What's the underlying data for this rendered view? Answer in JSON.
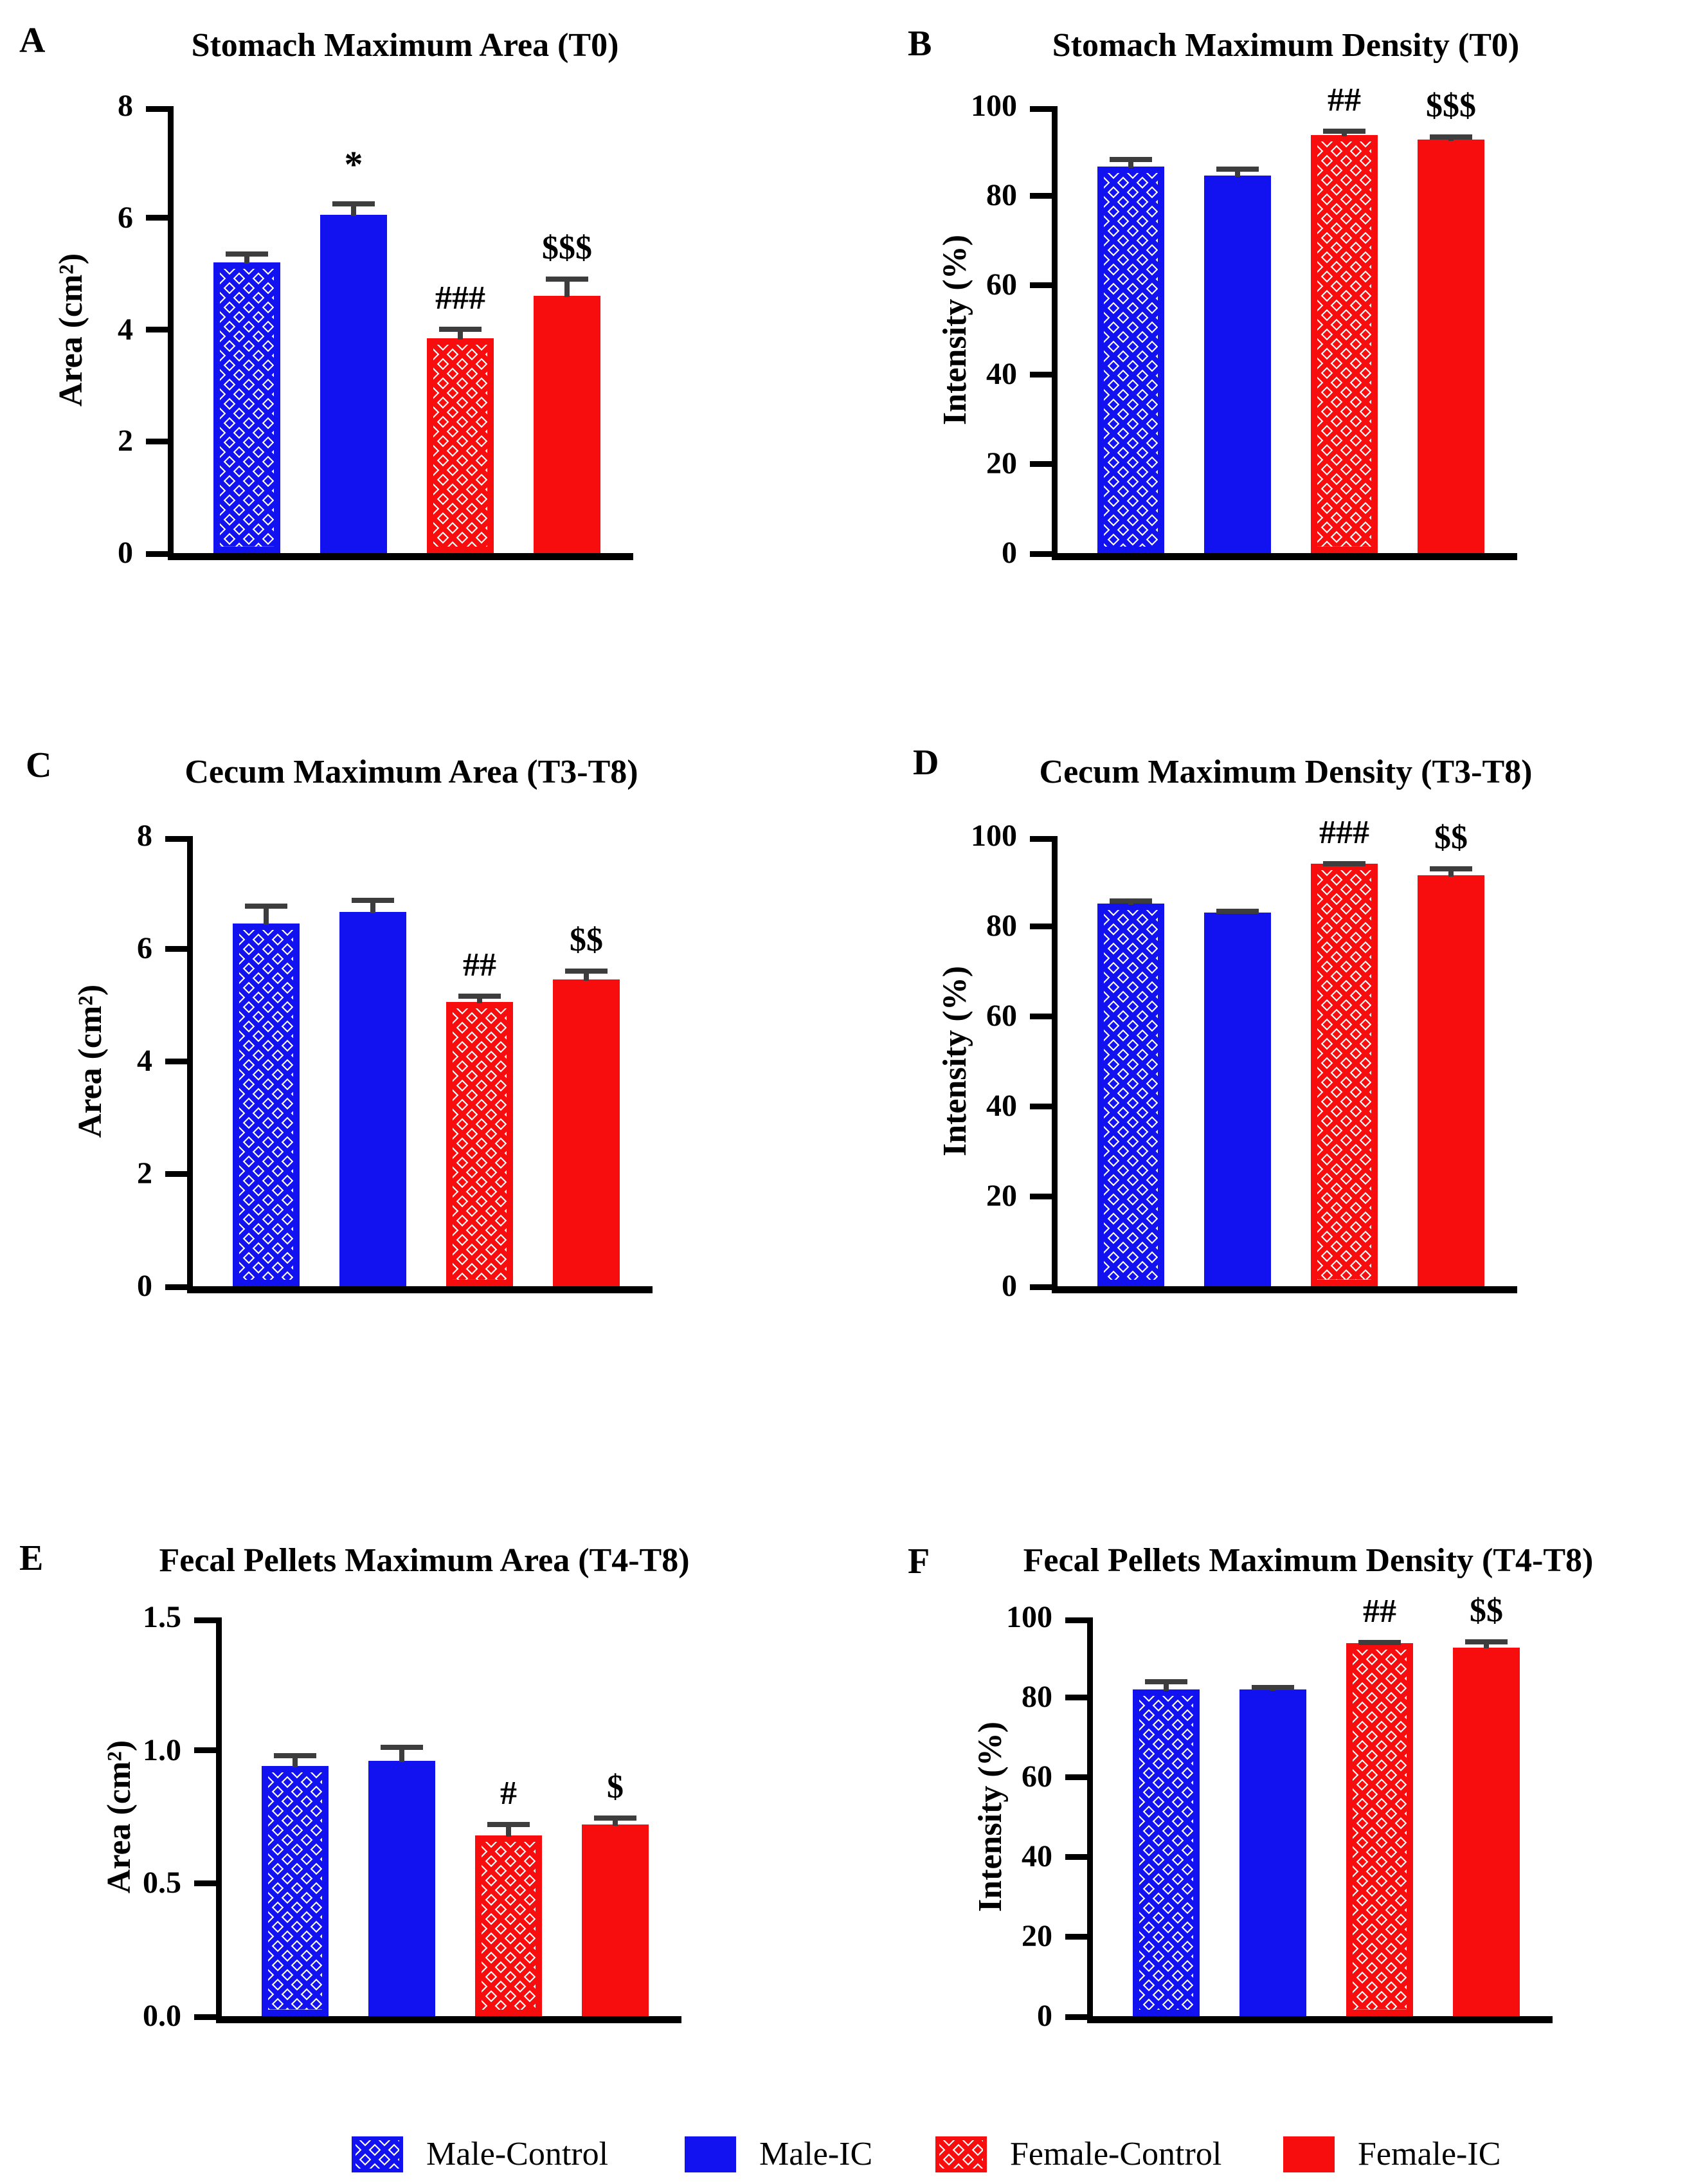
{
  "figure": {
    "description": "Six-panel bar chart figure comparing gastrointestinal scintigraphy measures between male and female, control and IC groups",
    "groups": [
      "Male-Control",
      "Male-IC",
      "Female-Control",
      "Female-IC"
    ]
  },
  "colors": {
    "male_blue": "#1212f0",
    "female_red": "#f70d0d",
    "error_bar": "#3d3d3d",
    "axis": "#000000",
    "background": "#ffffff"
  },
  "legend": {
    "items": [
      {
        "label": "Male-Control",
        "fill": "checker-blue"
      },
      {
        "label": "Male-IC",
        "fill": "solid-blue"
      },
      {
        "label": "Female-Control",
        "fill": "checker-red"
      },
      {
        "label": "Female-IC",
        "fill": "solid-red"
      }
    ]
  },
  "chart_data": [
    {
      "type": "bar",
      "panel_letter": "A",
      "title": "Stomach Maximum Area (T0)",
      "ylabel": "Area (cm²)",
      "ylim": [
        0,
        8
      ],
      "ystep": 2,
      "tick_decimals": 0,
      "grid": false,
      "categories": [
        "Male-Control",
        "Male-IC",
        "Female-Control",
        "Female-IC"
      ],
      "values": [
        5.2,
        6.05,
        3.85,
        4.6
      ],
      "errors": [
        0.2,
        0.25,
        0.2,
        0.35
      ],
      "significance": [
        "",
        "*",
        "###",
        "$$$"
      ],
      "fills": [
        "checker-blue",
        "solid-blue",
        "checker-red",
        "solid-red"
      ]
    },
    {
      "type": "bar",
      "panel_letter": "B",
      "title": "Stomach Maximum Density (T0)",
      "ylabel": "Intensity (%)",
      "ylim": [
        0,
        100
      ],
      "ystep": 20,
      "tick_decimals": 0,
      "grid": false,
      "categories": [
        "Male-Control",
        "Male-IC",
        "Female-Control",
        "Female-IC"
      ],
      "values": [
        86.5,
        84.5,
        93.5,
        92.5
      ],
      "errors": [
        2.2,
        2.0,
        1.5,
        1.2
      ],
      "significance": [
        "",
        "",
        "##",
        "$$$"
      ],
      "fills": [
        "checker-blue",
        "solid-blue",
        "checker-red",
        "solid-red"
      ]
    },
    {
      "type": "bar",
      "panel_letter": "C",
      "title": "Cecum Maximum Area (T3-T8)",
      "ylabel": "Area (cm²)",
      "ylim": [
        0,
        8
      ],
      "ystep": 2,
      "tick_decimals": 0,
      "grid": false,
      "categories": [
        "Male-Control",
        "Male-IC",
        "Female-Control",
        "Female-IC"
      ],
      "values": [
        6.45,
        6.65,
        5.05,
        5.45
      ],
      "errors": [
        0.35,
        0.25,
        0.15,
        0.2
      ],
      "significance": [
        "",
        "",
        "##",
        "$$"
      ],
      "fills": [
        "checker-blue",
        "solid-blue",
        "checker-red",
        "solid-red"
      ]
    },
    {
      "type": "bar",
      "panel_letter": "D",
      "title": "Cecum Maximum Density (T3-T8)",
      "ylabel": "Intensity (%)",
      "ylim": [
        0,
        100
      ],
      "ystep": 20,
      "tick_decimals": 0,
      "grid": false,
      "categories": [
        "Male-Control",
        "Male-IC",
        "Female-Control",
        "Female-IC"
      ],
      "values": [
        85.0,
        83.0,
        93.8,
        91.3
      ],
      "errors": [
        1.2,
        0.9,
        0.7,
        2.0
      ],
      "significance": [
        "",
        "",
        "###",
        "$$"
      ],
      "fills": [
        "checker-blue",
        "solid-blue",
        "checker-red",
        "solid-red"
      ]
    },
    {
      "type": "bar",
      "panel_letter": "E",
      "title": "Fecal Pellets Maximum Area (T4-T8)",
      "ylabel": "Area (cm²)",
      "ylim": [
        0,
        1.5
      ],
      "ystep": 0.5,
      "tick_decimals": 1,
      "grid": false,
      "categories": [
        "Male-Control",
        "Male-IC",
        "Female-Control",
        "Female-IC"
      ],
      "values": [
        0.94,
        0.96,
        0.68,
        0.72
      ],
      "errors": [
        0.05,
        0.06,
        0.05,
        0.035
      ],
      "significance": [
        "",
        "",
        "#",
        "$"
      ],
      "fills": [
        "checker-blue",
        "solid-blue",
        "checker-red",
        "solid-red"
      ]
    },
    {
      "type": "bar",
      "panel_letter": "F",
      "title": "Fecal Pellets Maximum Density (T4-T8)",
      "ylabel": "Intensity (%)",
      "ylim": [
        0,
        100
      ],
      "ystep": 20,
      "tick_decimals": 0,
      "grid": false,
      "categories": [
        "Male-Control",
        "Male-IC",
        "Female-Control",
        "Female-IC"
      ],
      "values": [
        82.0,
        82.0,
        93.5,
        92.5
      ],
      "errors": [
        2.5,
        1.0,
        0.8,
        2.0
      ],
      "significance": [
        "",
        "",
        "##",
        "$$"
      ],
      "fills": [
        "checker-blue",
        "solid-blue",
        "checker-red",
        "solid-red"
      ]
    }
  ]
}
